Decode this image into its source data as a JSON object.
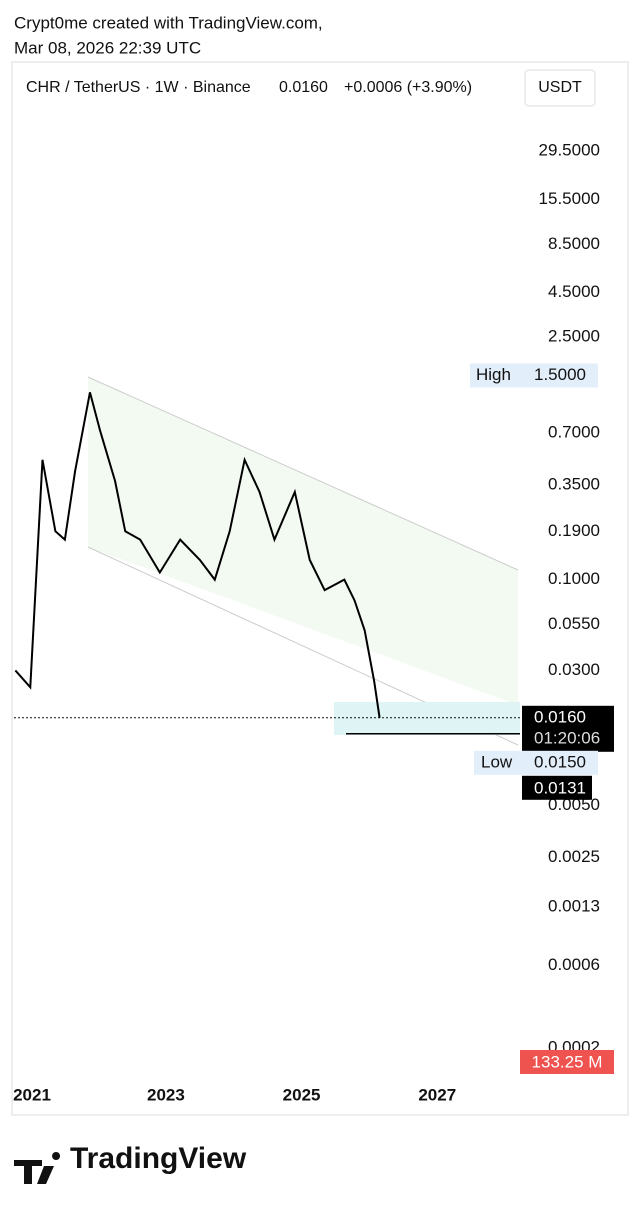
{
  "header": {
    "line1": "Crypt0me created with TradingView.com,",
    "line2": "Mar 08, 2026 22:39 UTC"
  },
  "footer": {
    "brand": "TradingView"
  },
  "chart_data": {
    "type": "line",
    "title": "CHR / TetherUS · 1W · Binance",
    "last": "0.0160",
    "change": "+0.0006 (+3.90%)",
    "currency": "USDT",
    "log_scale": true,
    "grid": false,
    "color": "#000000",
    "series": [
      {
        "name": "CHR / TetherUS",
        "color": "#000000",
        "x": [
          2020.78,
          2021.0,
          2021.18,
          2021.37,
          2021.51,
          2021.66,
          2021.88,
          2022.03,
          2022.25,
          2022.4,
          2022.62,
          2022.91,
          2023.21,
          2023.5,
          2023.72,
          2023.94,
          2024.16,
          2024.38,
          2024.6,
          2024.9,
          2025.12,
          2025.34,
          2025.63,
          2025.78,
          2025.93,
          2026.07,
          2026.15
        ],
        "values": [
          0.03,
          0.024,
          0.49,
          0.19,
          0.17,
          0.42,
          1.2,
          0.72,
          0.37,
          0.19,
          0.17,
          0.11,
          0.17,
          0.13,
          0.1,
          0.19,
          0.49,
          0.32,
          0.17,
          0.32,
          0.13,
          0.087,
          0.1,
          0.076,
          0.051,
          0.026,
          0.016
        ]
      }
    ],
    "xlim": [
      2020.76,
      2028.22
    ],
    "xticks": [
      2021,
      2023,
      2025,
      2027
    ],
    "ylim": [
      0.00014,
      58
    ],
    "yticks": [
      {
        "value": 29.5,
        "label": "29.5000"
      },
      {
        "value": 15.5,
        "label": "15.5000"
      },
      {
        "value": 8.5,
        "label": "8.5000"
      },
      {
        "value": 4.5,
        "label": "4.5000"
      },
      {
        "value": 2.5,
        "label": "2.5000"
      },
      {
        "value": 0.7,
        "label": "0.7000"
      },
      {
        "value": 0.35,
        "label": "0.3500"
      },
      {
        "value": 0.19,
        "label": "0.1900"
      },
      {
        "value": 0.1,
        "label": "0.1000"
      },
      {
        "value": 0.055,
        "label": "0.0550"
      },
      {
        "value": 0.03,
        "label": "0.0300"
      },
      {
        "value": 0.005,
        "label": "0.0050"
      },
      {
        "value": 0.0025,
        "label": "0.0025"
      },
      {
        "value": 0.0013,
        "label": "0.0013"
      },
      {
        "value": 0.0006,
        "label": "0.0006"
      },
      {
        "value": 0.0002,
        "label": "0.0002"
      }
    ],
    "high": {
      "label": "High",
      "value": 1.5,
      "text": "1.5000"
    },
    "low": {
      "label": "Low",
      "value": 0.015,
      "text": "0.0150"
    },
    "price_line": {
      "value": 0.016,
      "label": "0.0160",
      "countdown": "01:20:06"
    },
    "low_line": {
      "value": 0.0131,
      "label": "0.0131"
    },
    "volume_label": "133.25 M"
  }
}
